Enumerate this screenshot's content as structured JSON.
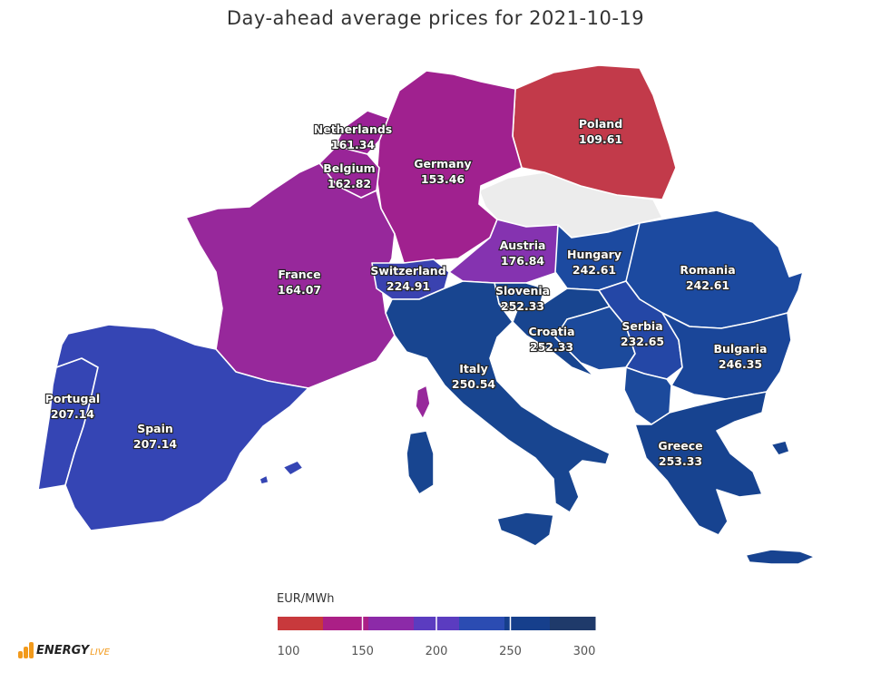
{
  "title": "Day-ahead average prices for 2021-10-19",
  "legend": {
    "title": "EUR/MWh",
    "ticks": [
      "100",
      "150",
      "200",
      "250",
      "300"
    ],
    "colors": [
      "#c8393c",
      "#ab1f86",
      "#8c2aa8",
      "#5b3cc0",
      "#2b4cb2",
      "#163f8c",
      "#1f3a6a"
    ]
  },
  "countries": [
    {
      "id": "netherlands",
      "name": "Netherlands",
      "value": "161.34",
      "color": "#9a2296"
    },
    {
      "id": "belgium",
      "name": "Belgium",
      "value": "162.82",
      "color": "#992598"
    },
    {
      "id": "germany",
      "name": "Germany",
      "value": "153.46",
      "color": "#a0218f"
    },
    {
      "id": "poland",
      "name": "Poland",
      "value": "109.61",
      "color": "#c23a4a"
    },
    {
      "id": "france",
      "name": "France",
      "value": "164.07",
      "color": "#97289b"
    },
    {
      "id": "switzerland",
      "name": "Switzerland",
      "value": "224.91",
      "color": "#3a42b0"
    },
    {
      "id": "austria",
      "name": "Austria",
      "value": "176.84",
      "color": "#8533b0"
    },
    {
      "id": "hungary",
      "name": "Hungary",
      "value": "242.61",
      "color": "#1c4aa0"
    },
    {
      "id": "romania",
      "name": "Romania",
      "value": "242.61",
      "color": "#1c4aa0"
    },
    {
      "id": "slovenia",
      "name": "Slovenia",
      "value": "252.33",
      "color": "#184590"
    },
    {
      "id": "croatia",
      "name": "Croatia",
      "value": "252.33",
      "color": "#184590"
    },
    {
      "id": "serbia",
      "name": "Serbia",
      "value": "232.65",
      "color": "#2447a6"
    },
    {
      "id": "bulgaria",
      "name": "Bulgaria",
      "value": "246.35",
      "color": "#1a4699"
    },
    {
      "id": "italy",
      "name": "Italy",
      "value": "250.54",
      "color": "#184590"
    },
    {
      "id": "greece",
      "name": "Greece",
      "value": "253.33",
      "color": "#174390"
    },
    {
      "id": "portugal",
      "name": "Portugal",
      "value": "207.14",
      "color": "#3545b4"
    },
    {
      "id": "spain",
      "name": "Spain",
      "value": "207.14",
      "color": "#3545b4"
    }
  ],
  "no_data_color": "#ececec",
  "logo": {
    "main": "ENERGY",
    "sub": "LIVE"
  }
}
